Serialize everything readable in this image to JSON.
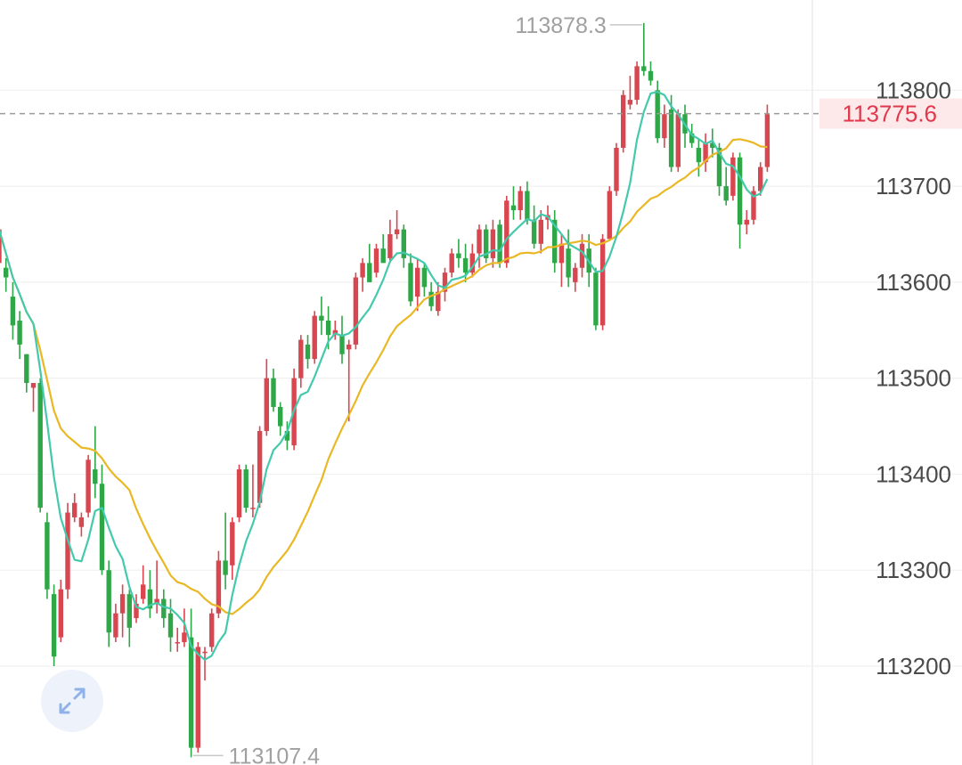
{
  "chart_data": {
    "type": "candlestick",
    "title": "",
    "xlabel": "",
    "ylabel": "",
    "ylim": [
      113097,
      113894
    ],
    "y_ticks": [
      "113800",
      "113700",
      "113600",
      "113500",
      "113400",
      "113300",
      "113200"
    ],
    "y_tick_values": [
      113800,
      113700,
      113600,
      113500,
      113400,
      113300,
      113200
    ],
    "grid": true,
    "last_price": 113775.6,
    "last_price_label": "113775.6",
    "high_label": "113878.3",
    "low_label": "113107.4",
    "colors": {
      "up": "#d8464f",
      "down": "#2fa748",
      "ma_short": "#43c9ac",
      "ma_long": "#e9b824",
      "last_price": "#e0394b"
    },
    "candles": [
      [
        113620,
        113660,
        113600,
        113655
      ],
      [
        113615,
        113625,
        113590,
        113605
      ],
      [
        113585,
        113600,
        113540,
        113555
      ],
      [
        113560,
        113570,
        113520,
        113535
      ],
      [
        113525,
        113525,
        113485,
        113495
      ],
      [
        113490,
        113495,
        113465,
        113495
      ],
      [
        113495,
        113500,
        113360,
        113365
      ],
      [
        113350,
        113360,
        113270,
        113280
      ],
      [
        113275,
        113285,
        113200,
        113210
      ],
      [
        113230,
        113290,
        113225,
        113280
      ],
      [
        113280,
        113370,
        113270,
        113360
      ],
      [
        113355,
        113380,
        113350,
        113370
      ],
      [
        113345,
        113360,
        113335,
        113355
      ],
      [
        113360,
        113420,
        113355,
        113415
      ],
      [
        113405,
        113450,
        113375,
        113390
      ],
      [
        113390,
        113410,
        113295,
        113300
      ],
      [
        113300,
        113310,
        113220,
        113235
      ],
      [
        113230,
        113265,
        113225,
        113255
      ],
      [
        113255,
        113285,
        113230,
        113275
      ],
      [
        113275,
        113280,
        113220,
        113240
      ],
      [
        113250,
        113275,
        113245,
        113265
      ],
      [
        113270,
        113305,
        113265,
        113285
      ],
      [
        113280,
        113300,
        113250,
        113260
      ],
      [
        113265,
        113310,
        113255,
        113270
      ],
      [
        113270,
        113280,
        113240,
        113250
      ],
      [
        113255,
        113270,
        113215,
        113230
      ],
      [
        113225,
        113240,
        113215,
        113225
      ],
      [
        113225,
        113260,
        113220,
        113235
      ],
      [
        113230,
        113260,
        113105,
        113115
      ],
      [
        113115,
        113225,
        113110,
        113220
      ],
      [
        113215,
        113220,
        113185,
        113215
      ],
      [
        113220,
        113260,
        113215,
        113255
      ],
      [
        113255,
        113320,
        113250,
        113310
      ],
      [
        113310,
        113360,
        113280,
        113295
      ],
      [
        113305,
        113355,
        113290,
        113350
      ],
      [
        113355,
        113410,
        113350,
        113405
      ],
      [
        113405,
        113410,
        113360,
        113365
      ],
      [
        113365,
        113410,
        113355,
        113365
      ],
      [
        113370,
        113450,
        113365,
        113445
      ],
      [
        113445,
        113520,
        113440,
        113500
      ],
      [
        113500,
        113510,
        113465,
        113470
      ],
      [
        113470,
        113475,
        113440,
        113450
      ],
      [
        113445,
        113455,
        113425,
        113435
      ],
      [
        113430,
        113510,
        113425,
        113500
      ],
      [
        113500,
        113545,
        113490,
        113540
      ],
      [
        113535,
        113545,
        113510,
        113520
      ],
      [
        113520,
        113570,
        113515,
        113565
      ],
      [
        113565,
        113585,
        113545,
        113560
      ],
      [
        113560,
        113575,
        113530,
        113545
      ],
      [
        113545,
        113560,
        113540,
        113550
      ],
      [
        113545,
        113565,
        113515,
        113525
      ],
      [
        113530,
        113540,
        113455,
        113535
      ],
      [
        113535,
        113610,
        113530,
        113605
      ],
      [
        113605,
        113625,
        113590,
        113620
      ],
      [
        113620,
        113640,
        113600,
        113600
      ],
      [
        113610,
        113640,
        113605,
        113635
      ],
      [
        113635,
        113650,
        113625,
        113620
      ],
      [
        113625,
        113665,
        113620,
        113650
      ],
      [
        113650,
        113675,
        113645,
        113655
      ],
      [
        113655,
        113660,
        113615,
        113625
      ],
      [
        113620,
        113630,
        113575,
        113580
      ],
      [
        113585,
        113625,
        113570,
        113615
      ],
      [
        113615,
        113620,
        113585,
        113595
      ],
      [
        113590,
        113600,
        113570,
        113575
      ],
      [
        113570,
        113600,
        113565,
        113590
      ],
      [
        113590,
        113615,
        113580,
        113610
      ],
      [
        113610,
        113635,
        113605,
        113630
      ],
      [
        113630,
        113645,
        113615,
        113625
      ],
      [
        113625,
        113640,
        113600,
        113610
      ],
      [
        113610,
        113640,
        113605,
        113630
      ],
      [
        113630,
        113660,
        113615,
        113655
      ],
      [
        113655,
        113660,
        113620,
        113625
      ],
      [
        113625,
        113665,
        113615,
        113655
      ],
      [
        113660,
        113665,
        113615,
        113620
      ],
      [
        113620,
        113690,
        113615,
        113685
      ],
      [
        113680,
        113700,
        113665,
        113675
      ],
      [
        113675,
        113700,
        113665,
        113695
      ],
      [
        113695,
        113705,
        113660,
        113665
      ],
      [
        113665,
        113680,
        113635,
        113640
      ],
      [
        113640,
        113675,
        113630,
        113665
      ],
      [
        113665,
        113680,
        113655,
        113670
      ],
      [
        113665,
        113675,
        113610,
        113620
      ],
      [
        113620,
        113650,
        113595,
        113640
      ],
      [
        113635,
        113655,
        113595,
        113605
      ],
      [
        113600,
        113620,
        113590,
        113615
      ],
      [
        113615,
        113650,
        113605,
        113640
      ],
      [
        113635,
        113650,
        113595,
        113610
      ],
      [
        113610,
        113615,
        113550,
        113555
      ],
      [
        113555,
        113650,
        113550,
        113645
      ],
      [
        113645,
        113700,
        113645,
        113695
      ],
      [
        113695,
        113745,
        113690,
        113740
      ],
      [
        113740,
        113800,
        113735,
        113795
      ],
      [
        113785,
        113815,
        113780,
        113790
      ],
      [
        113790,
        113830,
        113785,
        113825
      ],
      [
        113825,
        113870,
        113815,
        113820
      ],
      [
        113820,
        113830,
        113805,
        113810
      ],
      [
        113800,
        113810,
        113745,
        113750
      ],
      [
        113750,
        113785,
        113740,
        113775
      ],
      [
        113780,
        113795,
        113715,
        113720
      ],
      [
        113720,
        113780,
        113715,
        113775
      ],
      [
        113775,
        113785,
        113740,
        113755
      ],
      [
        113755,
        113765,
        113740,
        113745
      ],
      [
        113740,
        113750,
        113710,
        113725
      ],
      [
        113725,
        113755,
        113715,
        113745
      ],
      [
        113745,
        113760,
        113730,
        113740
      ],
      [
        113740,
        113745,
        113690,
        113700
      ],
      [
        113700,
        113720,
        113680,
        113685
      ],
      [
        113690,
        113735,
        113685,
        113730
      ],
      [
        113730,
        113735,
        113635,
        113660
      ],
      [
        113660,
        113675,
        113650,
        113665
      ],
      [
        113665,
        113700,
        113660,
        113695
      ],
      [
        113695,
        113725,
        113690,
        113720
      ],
      [
        113720,
        113785,
        113715,
        113775
      ]
    ]
  },
  "ui": {
    "expand_icon": "expand-arrows-icon",
    "expand_icon_color": "#8fb2e8"
  }
}
